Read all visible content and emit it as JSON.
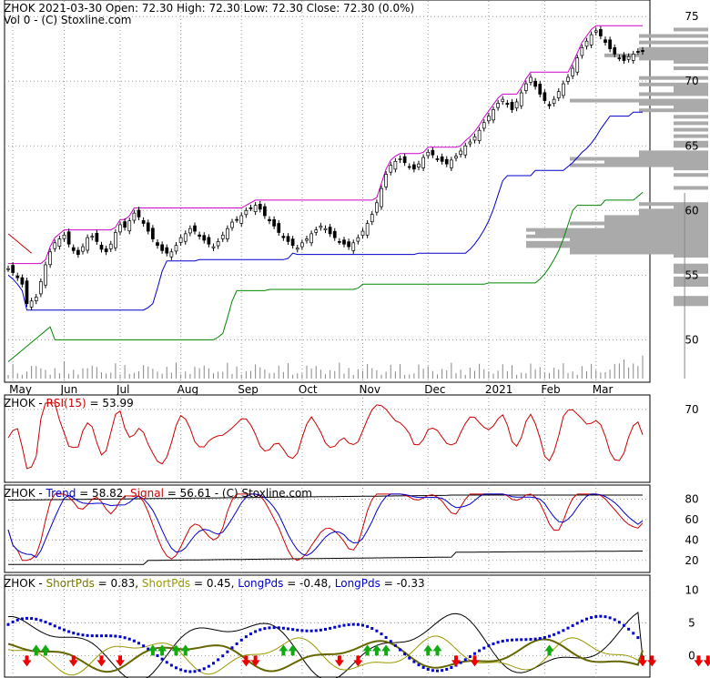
{
  "chart_data": [
    {
      "type": "candlestick",
      "panel": "price",
      "header": "ZHOK  2021-03-30 Open: 72.30  High: 72.30  Low: 72.30  Close: 72.30 (0.0%)",
      "subheader": "Vol 0   - (C) Stoxline.com",
      "ylim": [
        47,
        76
      ],
      "yticks": [
        "75",
        "70",
        "65",
        "60",
        "55",
        "50"
      ],
      "ytick_values": [
        75,
        70,
        65,
        60,
        55,
        50
      ],
      "xtick_labels": [
        "May",
        "Jun",
        "Jul",
        "Aug",
        "Sep",
        "Oct",
        "Nov",
        "Dec",
        "2021",
        "Feb",
        "Mar"
      ],
      "close": [
        55.5,
        55.2,
        54.8,
        54.3,
        52.8,
        53.0,
        53.3,
        54.5,
        55.8,
        56.8,
        57.5,
        57.8,
        58.1,
        57.4,
        56.9,
        56.6,
        57.2,
        57.9,
        58.0,
        57.6,
        57.0,
        56.8,
        57.4,
        58.3,
        58.9,
        58.7,
        59.2,
        59.8,
        59.5,
        59.0,
        58.4,
        57.8,
        57.3,
        56.9,
        56.7,
        56.8,
        57.3,
        57.9,
        58.2,
        58.6,
        58.4,
        58.0,
        57.7,
        57.4,
        57.2,
        57.6,
        58.1,
        58.6,
        59.1,
        59.3,
        59.6,
        60.0,
        60.2,
        60.4,
        60.1,
        59.6,
        59.2,
        58.8,
        58.3,
        57.9,
        57.6,
        57.3,
        57.1,
        57.5,
        57.8,
        58.2,
        58.5,
        58.8,
        58.6,
        58.2,
        57.9,
        57.6,
        57.4,
        57.2,
        57.5,
        57.9,
        58.4,
        59.0,
        59.7,
        60.6,
        61.7,
        62.8,
        63.5,
        63.8,
        64.0,
        63.7,
        63.4,
        63.2,
        63.6,
        64.1,
        64.5,
        64.3,
        64.0,
        63.8,
        63.6,
        63.9,
        64.2,
        64.6,
        65.0,
        65.3,
        65.7,
        66.2,
        66.8,
        67.3,
        67.8,
        68.3,
        68.6,
        68.2,
        67.8,
        68.4,
        69.1,
        69.8,
        70.3,
        69.6,
        69.0,
        68.5,
        68.1,
        68.6,
        69.2,
        69.8,
        70.3,
        71.0,
        71.8,
        72.6,
        73.1,
        73.6,
        73.9,
        73.5,
        73.0,
        72.5,
        72.1,
        71.8,
        71.6,
        71.9,
        72.1,
        72.3,
        72.3
      ]
    },
    {
      "type": "line",
      "panel": "rsi",
      "label_prefix": "ZHOK - ",
      "label_name": "RSI(15)",
      "label_value": " = 53.99",
      "ylim": [
        25,
        78
      ],
      "yticks": [
        "70"
      ],
      "ytick_values": [
        70
      ]
    },
    {
      "type": "line",
      "panel": "trend",
      "label_prefix": "ZHOK - ",
      "label_trend": "Trend",
      "label_trend_value": " = 58.82, ",
      "label_signal": "Signal",
      "label_signal_value": " = 56.61",
      "label_suffix": " - (C) Stoxline.com",
      "ylim": [
        10,
        92
      ],
      "yticks": [
        "80",
        "60",
        "40",
        "20"
      ],
      "ytick_values": [
        80,
        60,
        40,
        20
      ]
    },
    {
      "type": "line",
      "panel": "periods",
      "label_prefix": "ZHOK - ",
      "label_short1": "ShortPds",
      "label_short1_value": " = 0.83, ",
      "label_short2": "ShortPds",
      "label_short2_value": " = 0.45, ",
      "label_long1": "LongPds",
      "label_long1_value": " = -0.48, ",
      "label_long2": "LongPds",
      "label_long2_value": " = -0.33",
      "ylim": [
        -3,
        12
      ],
      "yticks": [
        "10",
        "5",
        "0"
      ],
      "ytick_values": [
        10,
        5,
        0
      ],
      "buy_arrows": [
        6,
        8,
        31,
        33,
        36,
        38,
        59,
        61,
        77,
        79,
        81,
        90,
        92,
        116
      ],
      "sell_arrows": [
        4,
        14,
        20,
        24,
        51,
        53,
        71,
        75,
        96,
        100,
        136,
        138,
        148,
        150
      ]
    }
  ],
  "colors": {
    "upper_band": "#cc00cc",
    "lower_blue": "#0000cc",
    "lower_green": "#008800",
    "red_start": "#cc0000",
    "rsi": "#cc0000",
    "trend": "#0000cc",
    "signal": "#cc0000",
    "short1": "#666600",
    "short2": "#999900",
    "long1": "#0000cc",
    "long2": "#000000",
    "buy_arrow": "#11aa11",
    "sell_arrow": "#ee0000",
    "volume_profile": "#aaaaaa"
  }
}
